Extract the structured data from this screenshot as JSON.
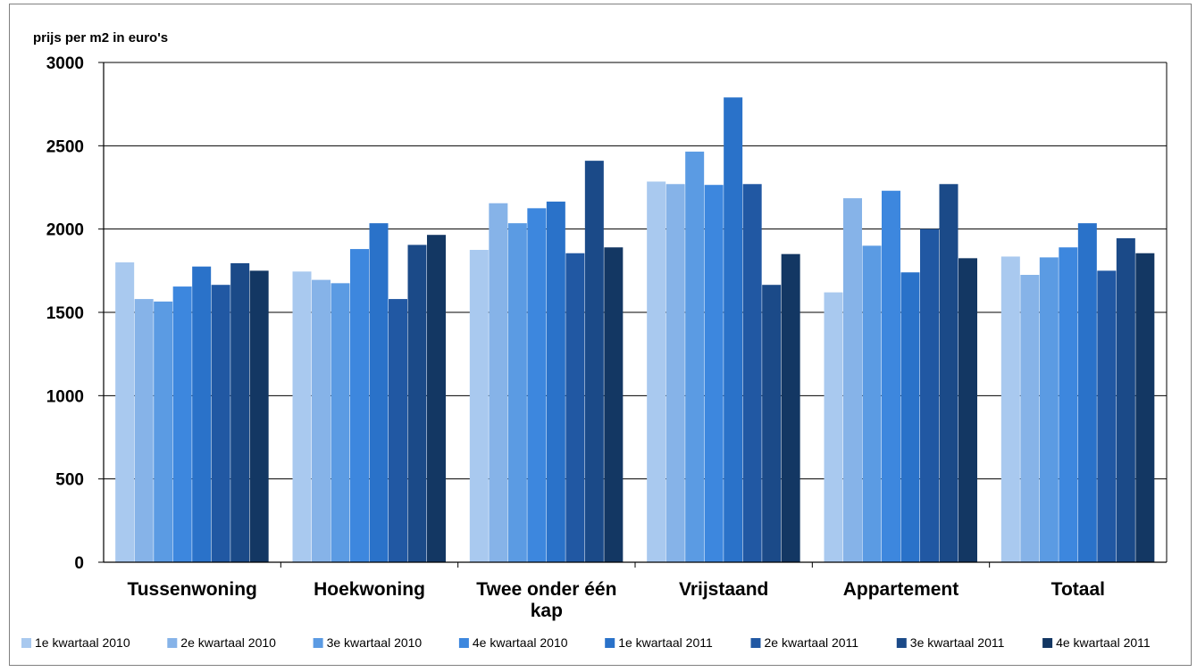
{
  "chart_data": {
    "type": "bar",
    "title": "",
    "ylabel": "prijs per m2 in euro's",
    "xlabel": "",
    "ylim": [
      0,
      3000
    ],
    "yticks": [
      "0",
      "500",
      "1000",
      "1500",
      "2000",
      "2500",
      "3000"
    ],
    "grid": "horizontal",
    "legend_position": "bottom",
    "categories": [
      "Tussenwoning",
      "Hoekwoning",
      "Twee onder één kap",
      "Vrijstaand",
      "Appartement",
      "Totaal"
    ],
    "series": [
      {
        "name": "1e kwartaal 2010",
        "color": "#a9c9ef",
        "values": [
          1800,
          1745,
          1875,
          2285,
          1620,
          1835
        ]
      },
      {
        "name": "2e kwartaal 2010",
        "color": "#86b3e8",
        "values": [
          1580,
          1695,
          2155,
          2270,
          2185,
          1725
        ]
      },
      {
        "name": "3e kwartaal 2010",
        "color": "#5b9be3",
        "values": [
          1565,
          1675,
          2035,
          2465,
          1900,
          1830
        ]
      },
      {
        "name": "4e kwartaal 2010",
        "color": "#3d87de",
        "values": [
          1655,
          1880,
          2125,
          2265,
          2230,
          1890
        ]
      },
      {
        "name": "1e kwartaal 2011",
        "color": "#2a72c9",
        "values": [
          1775,
          2035,
          2165,
          2790,
          1740,
          2035
        ]
      },
      {
        "name": "2e kwartaal 2011",
        "color": "#2158a3",
        "values": [
          1665,
          1580,
          1855,
          2270,
          2000,
          1750
        ]
      },
      {
        "name": "3e kwartaal 2011",
        "color": "#1b4a88",
        "values": [
          1795,
          1905,
          2410,
          1665,
          2270,
          1945
        ]
      },
      {
        "name": "4e kwartaal 2011",
        "color": "#133763",
        "values": [
          1750,
          1965,
          1890,
          1850,
          1825,
          1855
        ]
      }
    ]
  }
}
